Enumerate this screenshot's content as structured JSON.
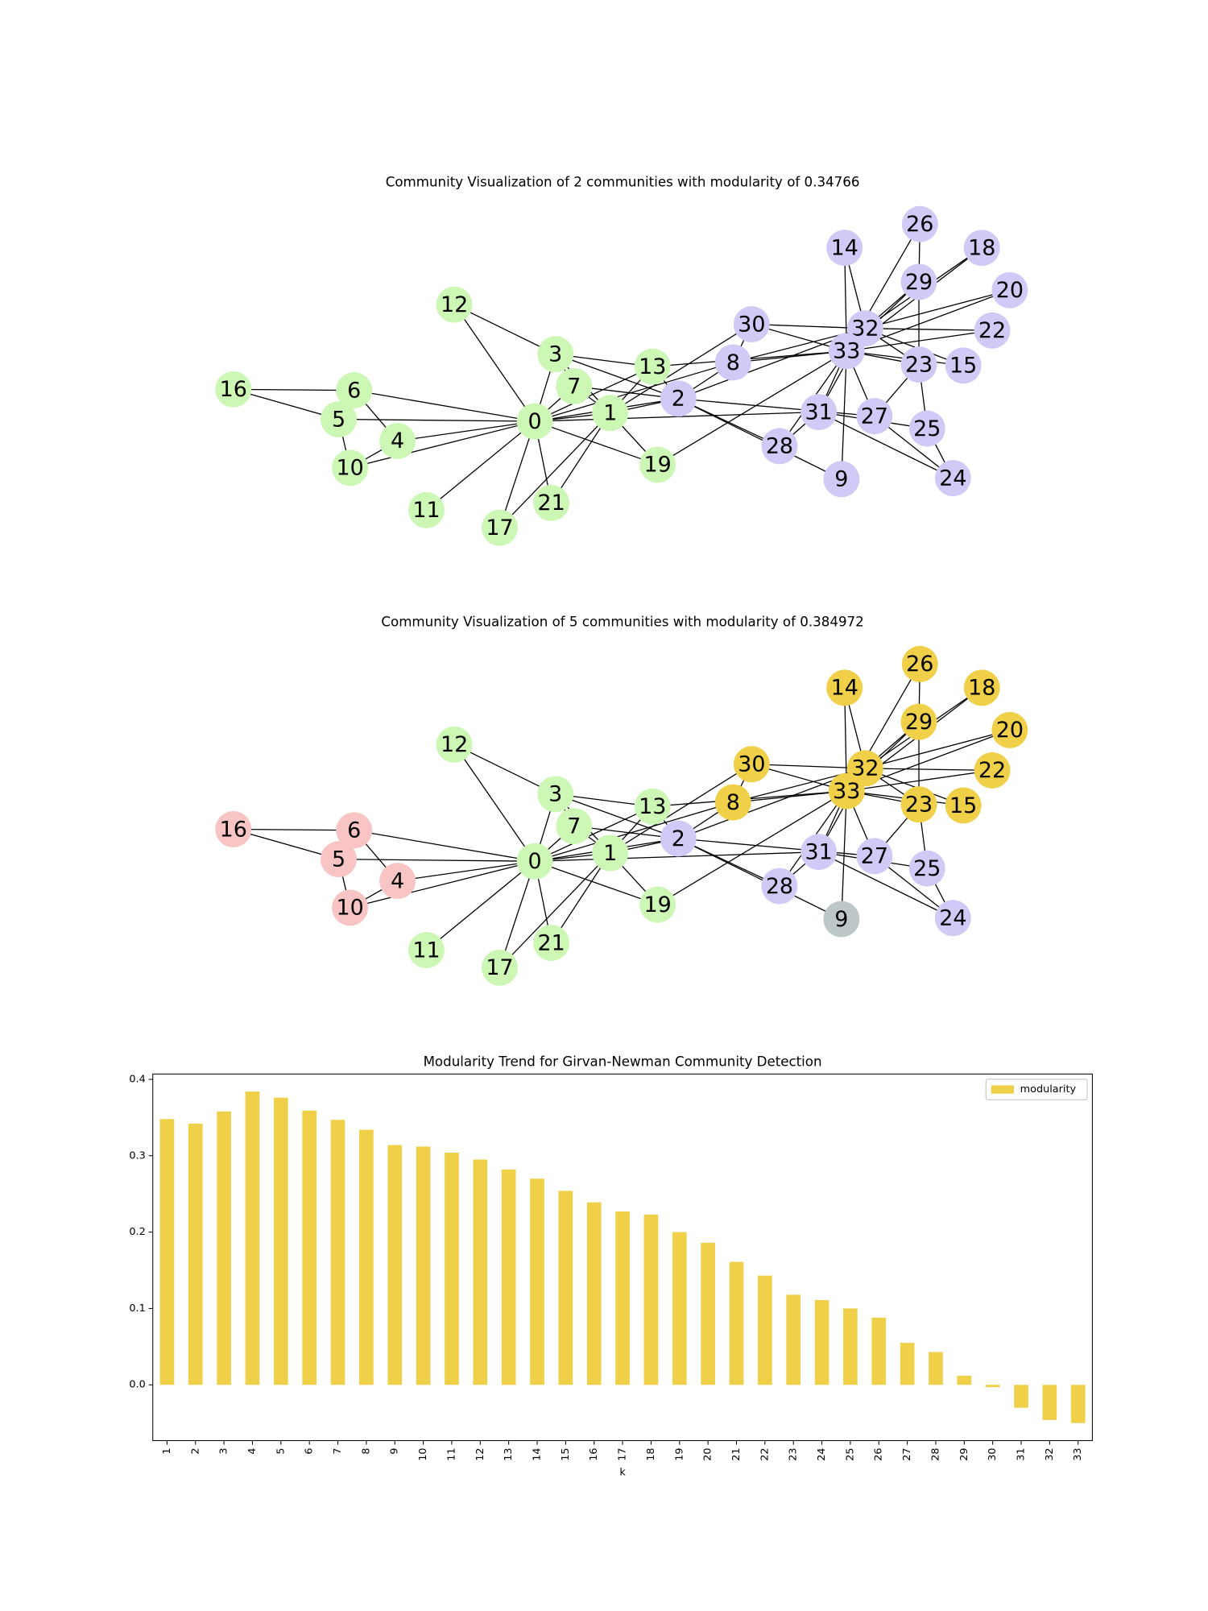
{
  "chart_data": [
    {
      "type": "network",
      "title": "Community Visualization of 2 communities with modularity of 0.34766",
      "nodes": [
        {
          "label": "0",
          "color": "#cdf7b4"
        },
        {
          "label": "1",
          "color": "#cdf7b4"
        },
        {
          "label": "2",
          "color": "#d0cbf6"
        },
        {
          "label": "3",
          "color": "#cdf7b4"
        },
        {
          "label": "4",
          "color": "#cdf7b4"
        },
        {
          "label": "5",
          "color": "#cdf7b4"
        },
        {
          "label": "6",
          "color": "#cdf7b4"
        },
        {
          "label": "7",
          "color": "#cdf7b4"
        },
        {
          "label": "8",
          "color": "#d0cbf6"
        },
        {
          "label": "9",
          "color": "#d0cbf6"
        },
        {
          "label": "10",
          "color": "#cdf7b4"
        },
        {
          "label": "11",
          "color": "#cdf7b4"
        },
        {
          "label": "12",
          "color": "#cdf7b4"
        },
        {
          "label": "13",
          "color": "#cdf7b4"
        },
        {
          "label": "14",
          "color": "#d0cbf6"
        },
        {
          "label": "15",
          "color": "#d0cbf6"
        },
        {
          "label": "16",
          "color": "#cdf7b4"
        },
        {
          "label": "17",
          "color": "#cdf7b4"
        },
        {
          "label": "18",
          "color": "#d0cbf6"
        },
        {
          "label": "19",
          "color": "#cdf7b4"
        },
        {
          "label": "20",
          "color": "#d0cbf6"
        },
        {
          "label": "21",
          "color": "#cdf7b4"
        },
        {
          "label": "22",
          "color": "#d0cbf6"
        },
        {
          "label": "23",
          "color": "#d0cbf6"
        },
        {
          "label": "24",
          "color": "#d0cbf6"
        },
        {
          "label": "25",
          "color": "#d0cbf6"
        },
        {
          "label": "26",
          "color": "#d0cbf6"
        },
        {
          "label": "27",
          "color": "#d0cbf6"
        },
        {
          "label": "28",
          "color": "#d0cbf6"
        },
        {
          "label": "29",
          "color": "#d0cbf6"
        },
        {
          "label": "30",
          "color": "#d0cbf6"
        },
        {
          "label": "31",
          "color": "#d0cbf6"
        },
        {
          "label": "32",
          "color": "#d0cbf6"
        },
        {
          "label": "33",
          "color": "#d0cbf6"
        }
      ]
    },
    {
      "type": "network",
      "title": "Community Visualization of 5 communities with modularity of 0.384972",
      "nodes": [
        {
          "label": "0",
          "color": "#cdf7b4"
        },
        {
          "label": "1",
          "color": "#cdf7b4"
        },
        {
          "label": "2",
          "color": "#d0cbf6"
        },
        {
          "label": "3",
          "color": "#cdf7b4"
        },
        {
          "label": "4",
          "color": "#f8c4c4"
        },
        {
          "label": "5",
          "color": "#f8c4c4"
        },
        {
          "label": "6",
          "color": "#f8c4c4"
        },
        {
          "label": "7",
          "color": "#cdf7b4"
        },
        {
          "label": "8",
          "color": "#f0d048"
        },
        {
          "label": "9",
          "color": "#bdc6c8"
        },
        {
          "label": "10",
          "color": "#f8c4c4"
        },
        {
          "label": "11",
          "color": "#cdf7b4"
        },
        {
          "label": "12",
          "color": "#cdf7b4"
        },
        {
          "label": "13",
          "color": "#cdf7b4"
        },
        {
          "label": "14",
          "color": "#f0d048"
        },
        {
          "label": "15",
          "color": "#f0d048"
        },
        {
          "label": "16",
          "color": "#f8c4c4"
        },
        {
          "label": "17",
          "color": "#cdf7b4"
        },
        {
          "label": "18",
          "color": "#f0d048"
        },
        {
          "label": "19",
          "color": "#cdf7b4"
        },
        {
          "label": "20",
          "color": "#f0d048"
        },
        {
          "label": "21",
          "color": "#cdf7b4"
        },
        {
          "label": "22",
          "color": "#f0d048"
        },
        {
          "label": "23",
          "color": "#f0d048"
        },
        {
          "label": "24",
          "color": "#d0cbf6"
        },
        {
          "label": "25",
          "color": "#d0cbf6"
        },
        {
          "label": "26",
          "color": "#f0d048"
        },
        {
          "label": "27",
          "color": "#d0cbf6"
        },
        {
          "label": "28",
          "color": "#d0cbf6"
        },
        {
          "label": "29",
          "color": "#f0d048"
        },
        {
          "label": "30",
          "color": "#f0d048"
        },
        {
          "label": "31",
          "color": "#d0cbf6"
        },
        {
          "label": "32",
          "color": "#f0d048"
        },
        {
          "label": "33",
          "color": "#f0d048"
        }
      ]
    },
    {
      "type": "bar",
      "title": "Modularity Trend for Girvan-Newman Community Detection",
      "xlabel": "k",
      "categories": [
        "1",
        "2",
        "3",
        "4",
        "5",
        "6",
        "7",
        "8",
        "9",
        "10",
        "11",
        "12",
        "13",
        "14",
        "15",
        "16",
        "17",
        "18",
        "19",
        "20",
        "21",
        "22",
        "23",
        "24",
        "25",
        "26",
        "27",
        "28",
        "29",
        "30",
        "31",
        "32",
        "33"
      ],
      "series": [
        {
          "name": "modularity",
          "color": "#f0d048",
          "values": [
            0.348,
            0.342,
            0.358,
            0.384,
            0.376,
            0.359,
            0.347,
            0.334,
            0.314,
            0.312,
            0.304,
            0.295,
            0.282,
            0.27,
            0.254,
            0.239,
            0.227,
            0.223,
            0.2,
            0.186,
            0.161,
            0.143,
            0.118,
            0.111,
            0.1,
            0.088,
            0.055,
            0.043,
            0.012,
            -0.003,
            -0.03,
            -0.046,
            -0.05
          ]
        }
      ],
      "ylim": [
        -0.073,
        0.407
      ],
      "yticks": [
        {
          "value": 0,
          "label": "0.0"
        },
        0.1,
        0.2,
        0.3,
        0.4
      ],
      "legend": "upper right"
    }
  ]
}
